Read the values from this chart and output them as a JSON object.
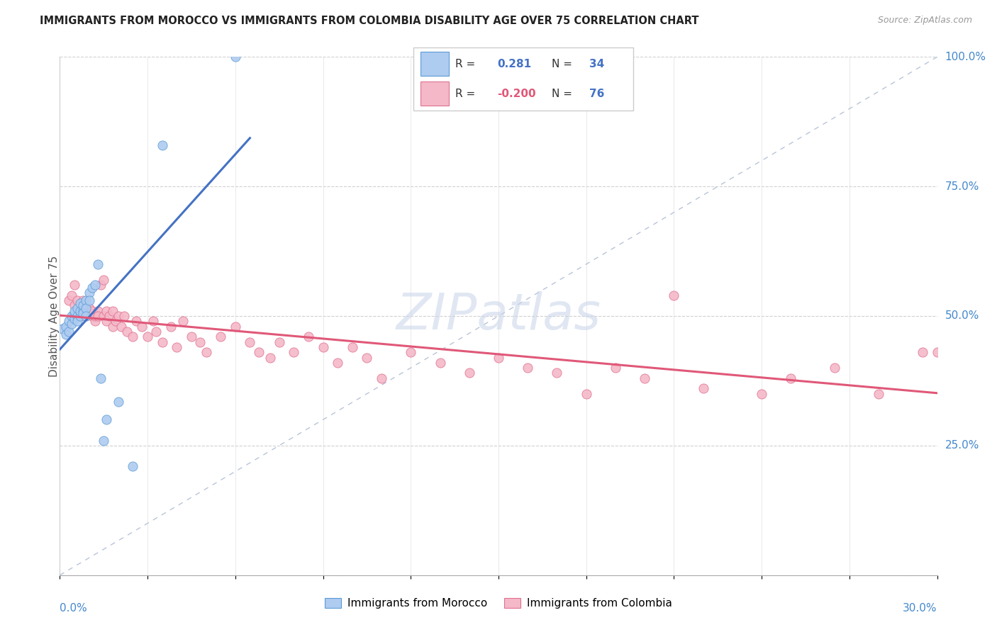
{
  "title": "IMMIGRANTS FROM MOROCCO VS IMMIGRANTS FROM COLOMBIA DISABILITY AGE OVER 75 CORRELATION CHART",
  "source": "Source: ZipAtlas.com",
  "ylabel": "Disability Age Over 75",
  "legend_morocco_r": "0.281",
  "legend_morocco_n": "34",
  "legend_colombia_r": "-0.200",
  "legend_colombia_n": "76",
  "morocco_color": "#aecbf0",
  "morocco_edge_color": "#5b9bd5",
  "morocco_line_color": "#4472c4",
  "colombia_color": "#f4b8c8",
  "colombia_edge_color": "#e07090",
  "colombia_line_color": "#e05878",
  "diagonal_color": "#b8c4d8",
  "watermark_color": "#c8d4e8",
  "morocco_x": [
    0.001,
    0.002,
    0.002,
    0.003,
    0.003,
    0.004,
    0.004,
    0.005,
    0.005,
    0.005,
    0.006,
    0.006,
    0.006,
    0.007,
    0.007,
    0.007,
    0.008,
    0.008,
    0.008,
    0.009,
    0.009,
    0.009,
    0.01,
    0.01,
    0.011,
    0.012,
    0.013,
    0.014,
    0.015,
    0.016,
    0.02,
    0.025,
    0.035,
    0.06
  ],
  "morocco_y": [
    0.475,
    0.48,
    0.465,
    0.49,
    0.47,
    0.5,
    0.485,
    0.505,
    0.495,
    0.51,
    0.5,
    0.49,
    0.515,
    0.5,
    0.51,
    0.525,
    0.51,
    0.52,
    0.505,
    0.53,
    0.515,
    0.5,
    0.545,
    0.53,
    0.555,
    0.56,
    0.6,
    0.38,
    0.26,
    0.3,
    0.335,
    0.21,
    0.83,
    1.0
  ],
  "colombia_x": [
    0.003,
    0.004,
    0.005,
    0.005,
    0.006,
    0.006,
    0.007,
    0.007,
    0.008,
    0.008,
    0.009,
    0.009,
    0.01,
    0.01,
    0.011,
    0.011,
    0.012,
    0.012,
    0.013,
    0.013,
    0.014,
    0.015,
    0.015,
    0.016,
    0.016,
    0.017,
    0.018,
    0.018,
    0.019,
    0.02,
    0.021,
    0.022,
    0.023,
    0.025,
    0.026,
    0.028,
    0.03,
    0.032,
    0.033,
    0.035,
    0.038,
    0.04,
    0.042,
    0.045,
    0.048,
    0.05,
    0.055,
    0.06,
    0.065,
    0.068,
    0.072,
    0.075,
    0.08,
    0.085,
    0.09,
    0.095,
    0.1,
    0.105,
    0.11,
    0.12,
    0.13,
    0.14,
    0.15,
    0.16,
    0.17,
    0.18,
    0.19,
    0.2,
    0.21,
    0.22,
    0.24,
    0.25,
    0.265,
    0.28,
    0.295,
    0.3
  ],
  "colombia_y": [
    0.53,
    0.54,
    0.52,
    0.56,
    0.51,
    0.53,
    0.5,
    0.52,
    0.51,
    0.53,
    0.5,
    0.51,
    0.515,
    0.505,
    0.5,
    0.51,
    0.49,
    0.5,
    0.51,
    0.5,
    0.56,
    0.57,
    0.5,
    0.51,
    0.49,
    0.5,
    0.48,
    0.51,
    0.49,
    0.5,
    0.48,
    0.5,
    0.47,
    0.46,
    0.49,
    0.48,
    0.46,
    0.49,
    0.47,
    0.45,
    0.48,
    0.44,
    0.49,
    0.46,
    0.45,
    0.43,
    0.46,
    0.48,
    0.45,
    0.43,
    0.42,
    0.45,
    0.43,
    0.46,
    0.44,
    0.41,
    0.44,
    0.42,
    0.38,
    0.43,
    0.41,
    0.39,
    0.42,
    0.4,
    0.39,
    0.35,
    0.4,
    0.38,
    0.54,
    0.36,
    0.35,
    0.38,
    0.4,
    0.35,
    0.43,
    0.43
  ],
  "xlim": [
    0.0,
    0.3
  ],
  "ylim": [
    0.0,
    1.0
  ],
  "ytick_vals": [
    0.0,
    0.25,
    0.5,
    0.75,
    1.0
  ],
  "ytick_labels": [
    "",
    "25.0%",
    "50.0%",
    "75.0%",
    "100.0%"
  ],
  "xtick_label_left": "0.0%",
  "xtick_label_right": "30.0%"
}
